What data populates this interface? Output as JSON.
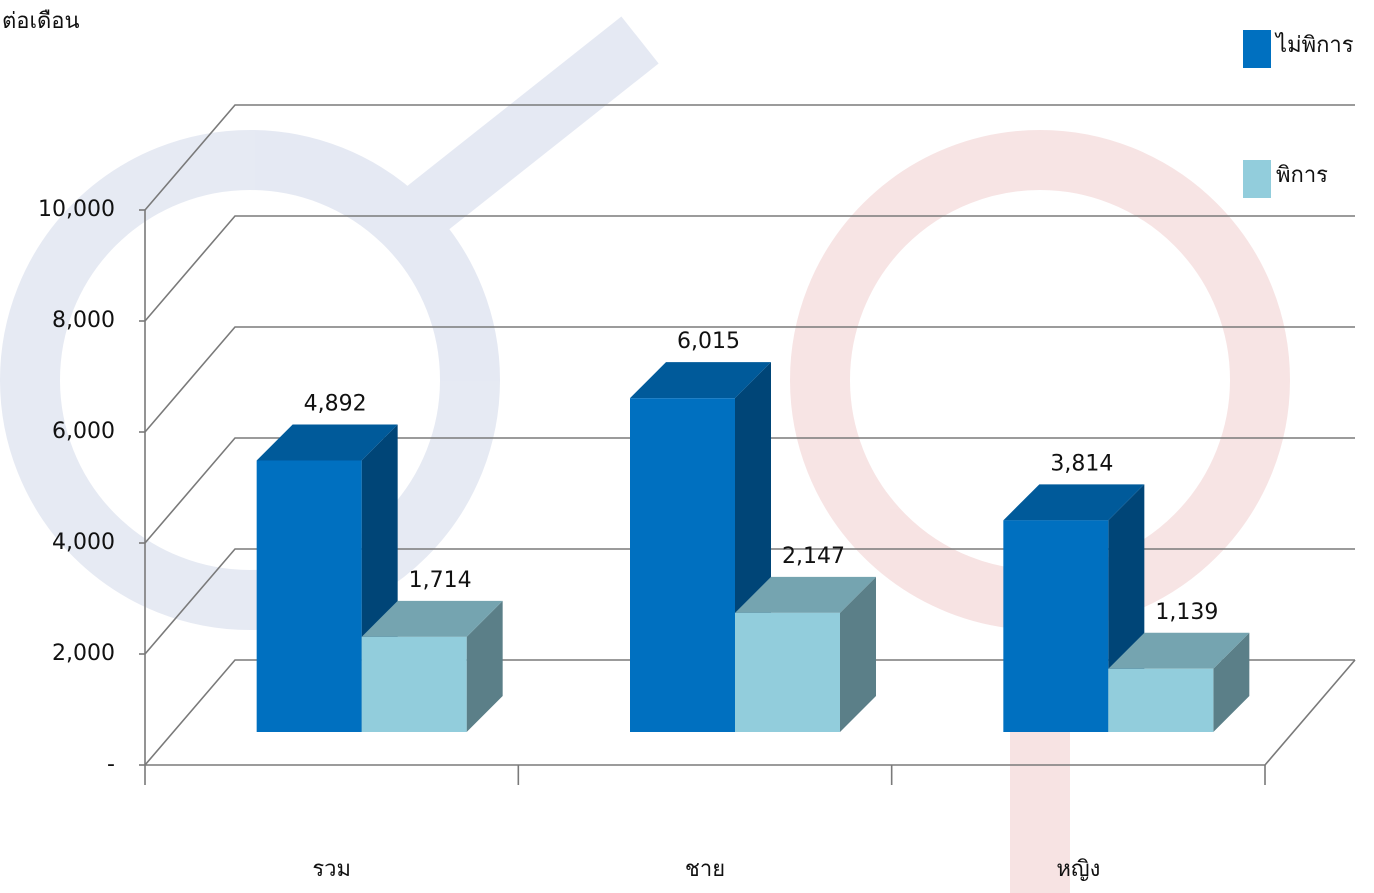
{
  "chart_data": {
    "type": "bar3d",
    "y_label": "ต่อเดือน",
    "categories": [
      "รวม",
      "ชาย",
      "หญิง"
    ],
    "series": [
      {
        "name": "ไม่พิการ",
        "color": "#0070c0",
        "values": [
          4892,
          6015,
          3814
        ],
        "value_labels": [
          "4,892",
          "6,015",
          "3,814"
        ]
      },
      {
        "name": "พิการ",
        "color": "#92cddc",
        "values": [
          1714,
          2147,
          1139
        ],
        "value_labels": [
          "1,714",
          "2,147",
          "1,139"
        ]
      }
    ],
    "ylim": [
      0,
      10000
    ],
    "yticks": [
      {
        "value": 0,
        "label": "-"
      },
      {
        "value": 2000,
        "label": "2,000"
      },
      {
        "value": 4000,
        "label": "4,000"
      },
      {
        "value": 6000,
        "label": "6,000"
      },
      {
        "value": 8000,
        "label": "8,000"
      },
      {
        "value": 10000,
        "label": "10,000"
      }
    ],
    "grid": true,
    "legend": "top-right"
  }
}
